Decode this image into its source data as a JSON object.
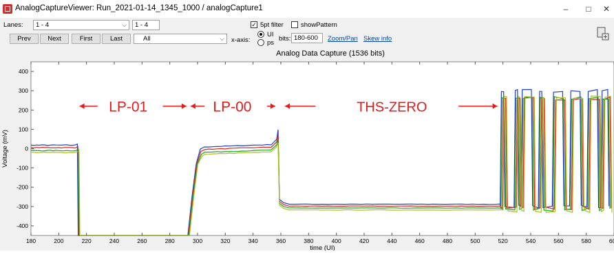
{
  "window": {
    "title": "AnalogCaptureViewer: Run_2021-01-14_1345_1000 / analogCapture1",
    "min_glyph": "–",
    "max_glyph": "□",
    "close_glyph": "✕"
  },
  "toolbar": {
    "lanes_label": "Lanes:",
    "lanes_value": "1 - 4",
    "lanes_value2": "1 - 4",
    "all_value": "All",
    "prev": "Prev",
    "next": "Next",
    "first": "First",
    "last": "Last",
    "filter_label": "5pt filter",
    "filter_checked": true,
    "showpattern_label": "showPattern",
    "showpattern_checked": false,
    "xaxis_label": "x-axis:",
    "ui_label": "UI",
    "ps_label": "ps",
    "xaxis_selected": "UI",
    "bits_label": "bits:",
    "bits_value": "180-600",
    "zoom_link": "Zoom/Pan",
    "skew_link": "Skew info"
  },
  "chart_data": {
    "type": "line",
    "title": "Analog Data Capture (1536 bits)",
    "xlabel": "time (UI)",
    "ylabel": "Voltage (mV)",
    "xlim": [
      180,
      600
    ],
    "ylim": [
      -450,
      450
    ],
    "x_ticks": [
      180,
      200,
      220,
      240,
      260,
      280,
      300,
      320,
      340,
      360,
      380,
      400,
      420,
      440,
      460,
      480,
      500,
      520,
      540,
      560,
      580,
      600
    ],
    "y_ticks": [
      400,
      300,
      200,
      100,
      0,
      -100,
      -200,
      -300,
      -400
    ],
    "grid": false,
    "series_colors": [
      "#1f3fd0",
      "#e02020",
      "#18a018",
      "#a8c020"
    ],
    "series": [
      {
        "offset": 18,
        "hs_level": -288
      },
      {
        "offset": 5,
        "hs_level": -298
      },
      {
        "offset": -10,
        "hs_level": -308
      },
      {
        "offset": -20,
        "hs_level": -318
      }
    ],
    "segments": {
      "lp01_end": 213,
      "lp00_start": 293,
      "lp00_end": 358,
      "hs_start": 518
    },
    "annotations": [
      {
        "text": "LP-01",
        "x": 250,
        "y": 220
      },
      {
        "text": "LP-00",
        "x": 325,
        "y": 220
      },
      {
        "text": "THS-ZERO",
        "x": 440,
        "y": 220
      }
    ],
    "annotation_color": "#e21b1b"
  }
}
